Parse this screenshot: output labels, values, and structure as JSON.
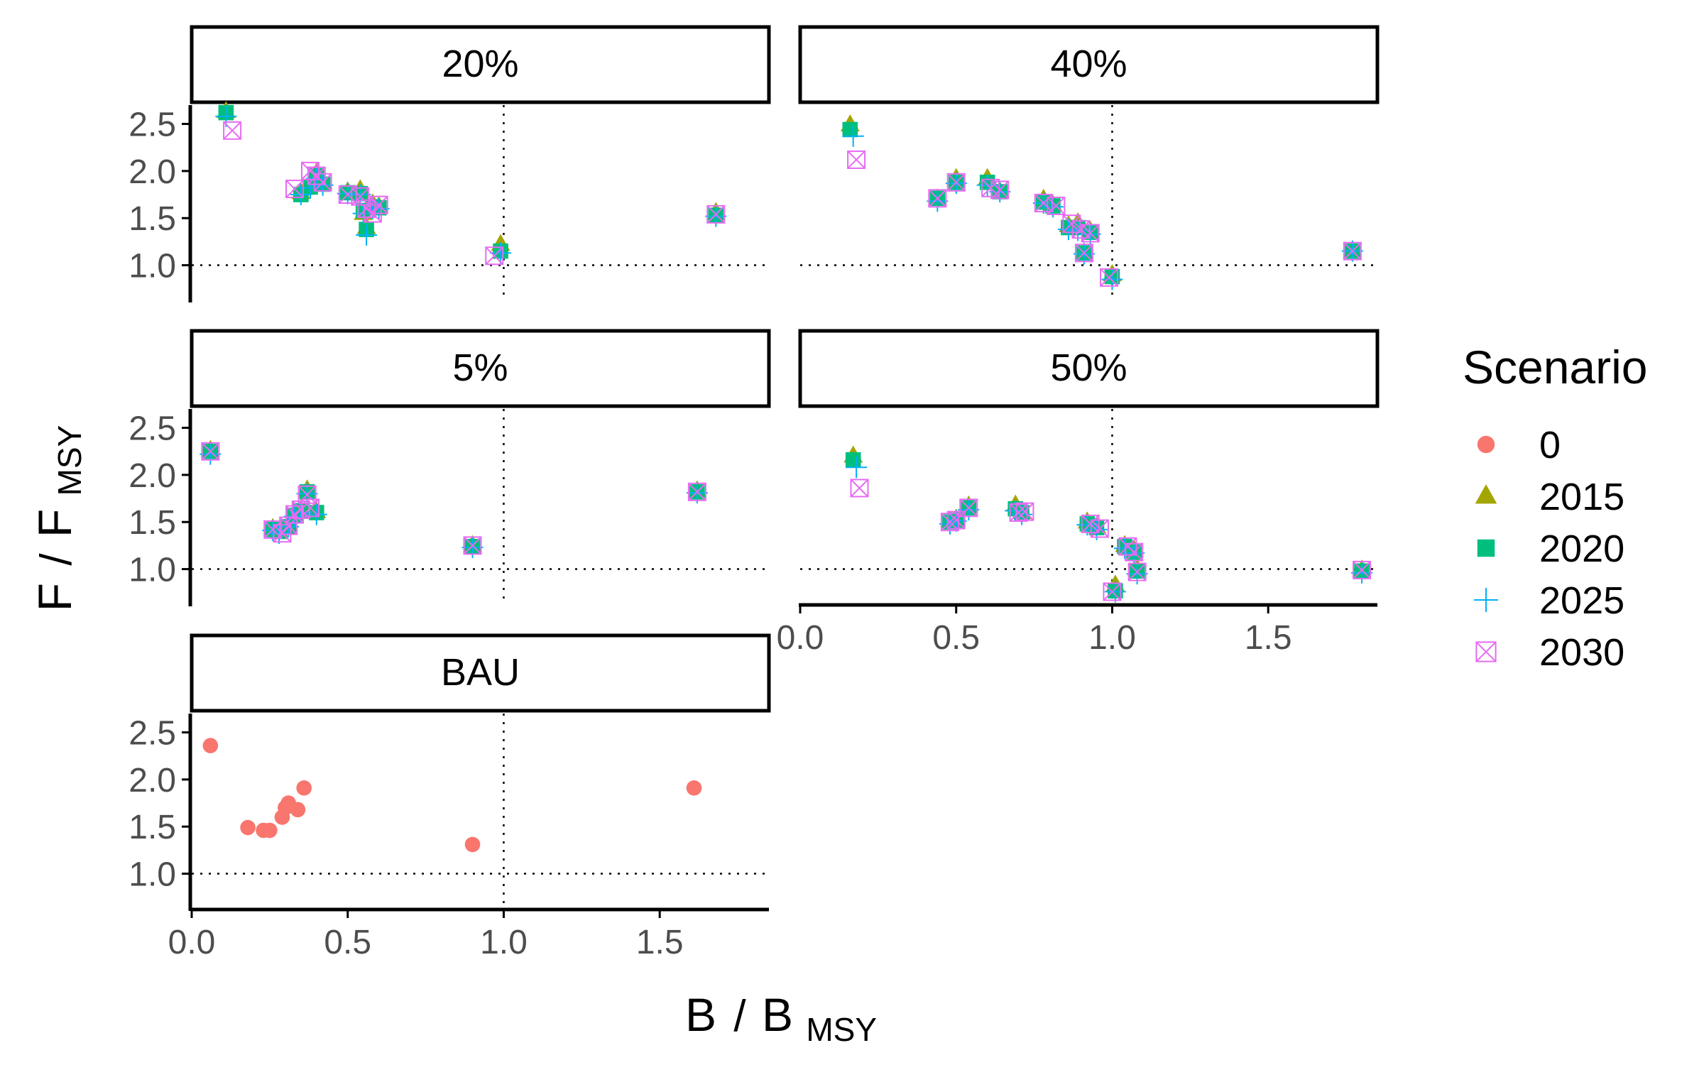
{
  "chart_data": {
    "type": "scatter",
    "layout": "faceted small multiples, 3 rows x 2 columns",
    "xlabel": {
      "main": "B",
      "sub": "MSY"
    },
    "ylabel": {
      "main": "F",
      "sub": "MSY"
    },
    "xlim": [
      0.0,
      1.85
    ],
    "ylim": [
      0.65,
      2.7
    ],
    "x_ticks": [
      "0.0",
      "0.5",
      "1.0",
      "1.5"
    ],
    "x_tick_values": [
      0.0,
      0.5,
      1.0,
      1.5
    ],
    "y_ticks": [
      "1.0",
      "1.5",
      "2.0",
      "2.5"
    ],
    "y_tick_values": [
      1.0,
      1.5,
      2.0,
      2.5
    ],
    "reference_lines": {
      "x": 1.0,
      "y": 1.0,
      "style": "dotted"
    },
    "grid": false,
    "legend": {
      "title": "Scenario",
      "position": "right",
      "entries": [
        {
          "label": "0",
          "shape": "circle",
          "color": "#F8766D"
        },
        {
          "label": "2015",
          "shape": "triangle",
          "color": "#A3A500"
        },
        {
          "label": "2020",
          "shape": "square",
          "color": "#00BF7D"
        },
        {
          "label": "2025",
          "shape": "plus",
          "color": "#00B0F6"
        },
        {
          "label": "2030",
          "shape": "square-x",
          "color": "#E76BF3"
        }
      ]
    },
    "panels": [
      {
        "label": "20%",
        "points": {
          "2015": [
            [
              0.11,
              2.63
            ],
            [
              0.35,
              1.77
            ],
            [
              0.38,
              1.85
            ],
            [
              0.4,
              1.98
            ],
            [
              0.42,
              1.87
            ],
            [
              0.5,
              1.78
            ],
            [
              0.54,
              1.8
            ],
            [
              0.55,
              1.55
            ],
            [
              0.56,
              1.4
            ],
            [
              0.58,
              1.65
            ],
            [
              0.6,
              1.62
            ],
            [
              0.99,
              1.22
            ],
            [
              1.68,
              1.56
            ]
          ],
          "2020": [
            [
              0.11,
              2.62
            ],
            [
              0.35,
              1.75
            ],
            [
              0.38,
              1.83
            ],
            [
              0.4,
              1.95
            ],
            [
              0.42,
              1.86
            ],
            [
              0.5,
              1.77
            ],
            [
              0.54,
              1.76
            ],
            [
              0.55,
              1.58
            ],
            [
              0.56,
              1.38
            ],
            [
              0.58,
              1.62
            ],
            [
              0.6,
              1.61
            ],
            [
              0.99,
              1.15
            ],
            [
              1.68,
              1.53
            ]
          ],
          "2025": [
            [
              0.11,
              2.58
            ],
            [
              0.35,
              1.75
            ],
            [
              0.38,
              1.82
            ],
            [
              0.4,
              1.92
            ],
            [
              0.42,
              1.85
            ],
            [
              0.5,
              1.76
            ],
            [
              0.54,
              1.75
            ],
            [
              0.55,
              1.55
            ],
            [
              0.56,
              1.32
            ],
            [
              0.58,
              1.6
            ],
            [
              0.6,
              1.6
            ],
            [
              0.99,
              1.13
            ],
            [
              1.68,
              1.52
            ]
          ],
          "2030": [
            [
              0.13,
              2.43
            ],
            [
              0.33,
              1.81
            ],
            [
              0.38,
              2.0
            ],
            [
              0.4,
              1.95
            ],
            [
              0.42,
              1.88
            ],
            [
              0.5,
              1.75
            ],
            [
              0.54,
              1.73
            ],
            [
              0.56,
              1.6
            ],
            [
              0.58,
              1.55
            ],
            [
              0.6,
              1.64
            ],
            [
              0.97,
              1.1
            ],
            [
              1.68,
              1.54
            ]
          ]
        }
      },
      {
        "label": "40%",
        "points": {
          "2015": [
            [
              0.16,
              2.49
            ],
            [
              0.44,
              1.7
            ],
            [
              0.5,
              1.92
            ],
            [
              0.6,
              1.92
            ],
            [
              0.64,
              1.78
            ],
            [
              0.78,
              1.7
            ],
            [
              0.81,
              1.64
            ],
            [
              0.86,
              1.42
            ],
            [
              0.89,
              1.45
            ],
            [
              0.91,
              1.13
            ],
            [
              0.93,
              1.36
            ],
            [
              1.0,
              0.9
            ],
            [
              1.77,
              1.15
            ]
          ],
          "2020": [
            [
              0.16,
              2.44
            ],
            [
              0.44,
              1.71
            ],
            [
              0.5,
              1.88
            ],
            [
              0.6,
              1.88
            ],
            [
              0.64,
              1.78
            ],
            [
              0.78,
              1.67
            ],
            [
              0.81,
              1.63
            ],
            [
              0.86,
              1.4
            ],
            [
              0.89,
              1.4
            ],
            [
              0.91,
              1.13
            ],
            [
              0.93,
              1.35
            ],
            [
              1.0,
              0.88
            ],
            [
              1.77,
              1.15
            ]
          ],
          "2025": [
            [
              0.17,
              2.37
            ],
            [
              0.44,
              1.68
            ],
            [
              0.5,
              1.87
            ],
            [
              0.6,
              1.85
            ],
            [
              0.64,
              1.78
            ],
            [
              0.78,
              1.66
            ],
            [
              0.81,
              1.62
            ],
            [
              0.86,
              1.38
            ],
            [
              0.89,
              1.37
            ],
            [
              0.91,
              1.12
            ],
            [
              0.93,
              1.33
            ],
            [
              1.0,
              0.85
            ],
            [
              1.77,
              1.15
            ]
          ],
          "2030": [
            [
              0.18,
              2.12
            ],
            [
              0.44,
              1.71
            ],
            [
              0.5,
              1.88
            ],
            [
              0.61,
              1.82
            ],
            [
              0.64,
              1.8
            ],
            [
              0.78,
              1.66
            ],
            [
              0.82,
              1.63
            ],
            [
              0.87,
              1.44
            ],
            [
              0.9,
              1.38
            ],
            [
              0.91,
              1.13
            ],
            [
              0.93,
              1.34
            ],
            [
              0.99,
              0.87
            ],
            [
              1.77,
              1.15
            ]
          ]
        }
      },
      {
        "label": "5%",
        "points": {
          "2015": [
            [
              0.06,
              2.26
            ],
            [
              0.26,
              1.43
            ],
            [
              0.28,
              1.4
            ],
            [
              0.31,
              1.47
            ],
            [
              0.33,
              1.59
            ],
            [
              0.35,
              1.63
            ],
            [
              0.37,
              1.84
            ],
            [
              0.4,
              1.61
            ],
            [
              0.9,
              1.25
            ],
            [
              1.62,
              1.83
            ]
          ],
          "2020": [
            [
              0.06,
              2.25
            ],
            [
              0.26,
              1.42
            ],
            [
              0.28,
              1.4
            ],
            [
              0.31,
              1.45
            ],
            [
              0.33,
              1.57
            ],
            [
              0.35,
              1.62
            ],
            [
              0.37,
              1.82
            ],
            [
              0.4,
              1.6
            ],
            [
              0.9,
              1.24
            ],
            [
              1.62,
              1.82
            ]
          ],
          "2025": [
            [
              0.06,
              2.22
            ],
            [
              0.26,
              1.41
            ],
            [
              0.28,
              1.38
            ],
            [
              0.31,
              1.45
            ],
            [
              0.33,
              1.56
            ],
            [
              0.35,
              1.6
            ],
            [
              0.37,
              1.8
            ],
            [
              0.4,
              1.58
            ],
            [
              0.9,
              1.23
            ],
            [
              1.62,
              1.81
            ]
          ],
          "2030": [
            [
              0.06,
              2.25
            ],
            [
              0.26,
              1.42
            ],
            [
              0.29,
              1.38
            ],
            [
              0.31,
              1.46
            ],
            [
              0.33,
              1.58
            ],
            [
              0.35,
              1.63
            ],
            [
              0.37,
              1.79
            ],
            [
              0.38,
              1.65
            ],
            [
              0.9,
              1.25
            ],
            [
              1.62,
              1.82
            ]
          ]
        }
      },
      {
        "label": "50%",
        "points": {
          "2015": [
            [
              0.17,
              2.2
            ],
            [
              0.48,
              1.51
            ],
            [
              0.5,
              1.53
            ],
            [
              0.54,
              1.67
            ],
            [
              0.69,
              1.68
            ],
            [
              0.71,
              1.6
            ],
            [
              0.92,
              1.5
            ],
            [
              0.95,
              1.45
            ],
            [
              1.01,
              0.83
            ],
            [
              1.04,
              1.25
            ],
            [
              1.07,
              1.2
            ],
            [
              1.08,
              1.0
            ],
            [
              1.8,
              0.99
            ]
          ],
          "2020": [
            [
              0.17,
              2.16
            ],
            [
              0.48,
              1.5
            ],
            [
              0.5,
              1.52
            ],
            [
              0.54,
              1.65
            ],
            [
              0.69,
              1.64
            ],
            [
              0.71,
              1.6
            ],
            [
              0.92,
              1.48
            ],
            [
              0.95,
              1.44
            ],
            [
              1.01,
              0.77
            ],
            [
              1.04,
              1.24
            ],
            [
              1.07,
              1.18
            ],
            [
              1.08,
              0.98
            ],
            [
              1.8,
              0.98
            ]
          ],
          "2025": [
            [
              0.18,
              2.08
            ],
            [
              0.48,
              1.48
            ],
            [
              0.5,
              1.51
            ],
            [
              0.54,
              1.63
            ],
            [
              0.69,
              1.62
            ],
            [
              0.71,
              1.58
            ],
            [
              0.92,
              1.47
            ],
            [
              0.95,
              1.42
            ],
            [
              1.01,
              0.76
            ],
            [
              1.04,
              1.22
            ],
            [
              1.07,
              1.17
            ],
            [
              1.08,
              0.95
            ],
            [
              1.8,
              0.96
            ]
          ],
          "2030": [
            [
              0.19,
              1.86
            ],
            [
              0.48,
              1.5
            ],
            [
              0.5,
              1.52
            ],
            [
              0.54,
              1.65
            ],
            [
              0.7,
              1.6
            ],
            [
              0.72,
              1.61
            ],
            [
              0.93,
              1.48
            ],
            [
              0.96,
              1.43
            ],
            [
              1.0,
              0.76
            ],
            [
              1.05,
              1.24
            ],
            [
              1.07,
              1.18
            ],
            [
              1.08,
              0.97
            ],
            [
              1.8,
              0.99
            ]
          ]
        }
      },
      {
        "label": "BAU",
        "points": {
          "0": [
            [
              0.06,
              2.36
            ],
            [
              0.18,
              1.49
            ],
            [
              0.23,
              1.46
            ],
            [
              0.25,
              1.46
            ],
            [
              0.29,
              1.6
            ],
            [
              0.3,
              1.7
            ],
            [
              0.31,
              1.75
            ],
            [
              0.34,
              1.68
            ],
            [
              0.36,
              1.91
            ],
            [
              0.9,
              1.31
            ],
            [
              1.61,
              1.91
            ]
          ]
        }
      }
    ]
  }
}
